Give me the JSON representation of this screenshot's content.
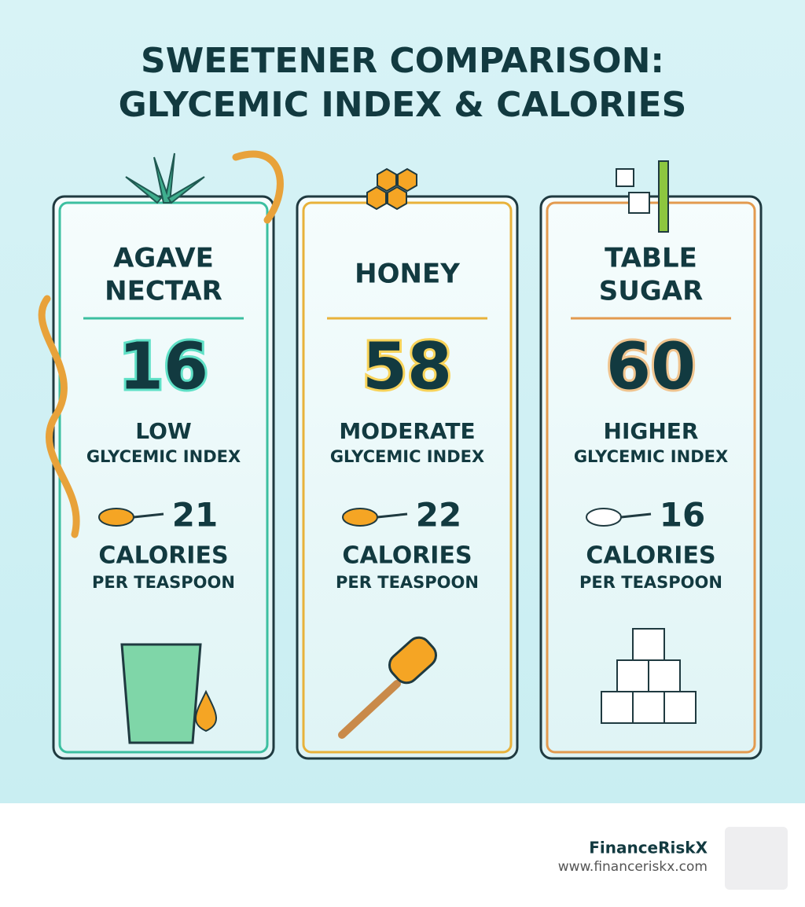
{
  "title": [
    "SWEETENER COMPARISON:",
    "GLYCEMIC INDEX & CALORIES"
  ],
  "cards": [
    {
      "name": [
        "AGAVE",
        "NECTAR"
      ],
      "glycemic_index": 16,
      "level": "LOW",
      "gi_label": "GLYCEMIC INDEX",
      "calories": 21,
      "calories_label": "CALORIES",
      "unit": "PER TEASPOON"
    },
    {
      "name": [
        "HONEY"
      ],
      "glycemic_index": 58,
      "level": "MODERATE",
      "gi_label": "GLYCEMIC INDEX",
      "calories": 22,
      "calories_label": "CALORIES",
      "unit": "PER TEASPOON"
    },
    {
      "name": [
        "TABLE",
        "SUGAR"
      ],
      "glycemic_index": 60,
      "level": "HIGHER",
      "gi_label": "GLYCEMIC INDEX",
      "calories": 16,
      "calories_label": "CALORIES",
      "unit": "PER TEASPOON"
    }
  ],
  "footer": {
    "brand": "FinanceRiskX",
    "url": "www.financeriskx.com"
  }
}
